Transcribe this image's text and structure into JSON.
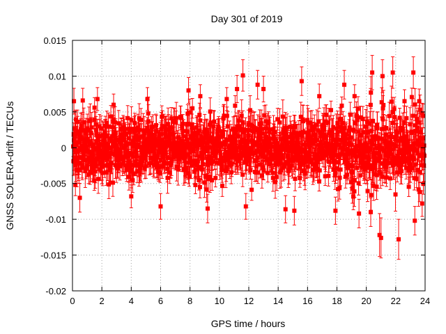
{
  "chart_data": {
    "type": "scatter",
    "title": "Day 301 of 2019",
    "xlabel": "GPS time / hours",
    "ylabel": "GNSS SOLERA-drift / TECUs",
    "xlim": [
      0,
      24
    ],
    "ylim": [
      -0.02,
      0.015
    ],
    "x_ticks": [
      "0",
      "2",
      "4",
      "6",
      "8",
      "10",
      "12",
      "14",
      "16",
      "18",
      "20",
      "22",
      "24"
    ],
    "y_ticks": [
      "0.015",
      "0.01",
      "0.005",
      "0",
      "-0.005",
      "-0.01",
      "-0.015",
      "-0.02"
    ],
    "x_tick_values": [
      0,
      2,
      4,
      6,
      8,
      10,
      12,
      14,
      16,
      18,
      20,
      22,
      24
    ],
    "y_tick_values": [
      0.015,
      0.01,
      0.005,
      0,
      -0.005,
      -0.01,
      -0.015,
      -0.02
    ],
    "grid": true,
    "legend": "none",
    "series_color": "#ff0000",
    "series": [
      {
        "marker": "square",
        "error_bars": true,
        "points": [
          {
            "x": 0.1,
            "y": 0.0065,
            "err": 0.0018
          },
          {
            "x": 0.2,
            "y": -0.0052,
            "err": 0.0015
          },
          {
            "x": 0.5,
            "y": -0.007,
            "err": 0.002
          },
          {
            "x": 0.7,
            "y": 0.0066,
            "err": 0.0017
          },
          {
            "x": 1.5,
            "y": 0.0056,
            "err": 0.0014
          },
          {
            "x": 1.7,
            "y": 0.0068,
            "err": 0.0016
          },
          {
            "x": 2.8,
            "y": 0.006,
            "err": 0.0015
          },
          {
            "x": 4.0,
            "y": -0.0068,
            "err": 0.0016
          },
          {
            "x": 5.1,
            "y": 0.0068,
            "err": 0.0016
          },
          {
            "x": 6.0,
            "y": -0.0082,
            "err": 0.0018
          },
          {
            "x": 7.9,
            "y": 0.008,
            "err": 0.0018
          },
          {
            "x": 8.7,
            "y": 0.0072,
            "err": 0.0016
          },
          {
            "x": 9.2,
            "y": -0.0085,
            "err": 0.002
          },
          {
            "x": 10.5,
            "y": 0.0068,
            "err": 0.0016
          },
          {
            "x": 11.2,
            "y": 0.0082,
            "err": 0.0019
          },
          {
            "x": 11.6,
            "y": 0.0101,
            "err": 0.0022
          },
          {
            "x": 11.8,
            "y": -0.0082,
            "err": 0.0018
          },
          {
            "x": 12.6,
            "y": 0.0088,
            "err": 0.002
          },
          {
            "x": 13.0,
            "y": 0.0082,
            "err": 0.0018
          },
          {
            "x": 14.5,
            "y": -0.0086,
            "err": 0.0019
          },
          {
            "x": 15.1,
            "y": -0.0088,
            "err": 0.002
          },
          {
            "x": 15.6,
            "y": 0.0093,
            "err": 0.002
          },
          {
            "x": 16.8,
            "y": 0.0072,
            "err": 0.0017
          },
          {
            "x": 17.9,
            "y": -0.0088,
            "err": 0.0019
          },
          {
            "x": 18.5,
            "y": 0.0088,
            "err": 0.002
          },
          {
            "x": 19.2,
            "y": 0.0072,
            "err": 0.0016
          },
          {
            "x": 19.5,
            "y": -0.0092,
            "err": 0.002
          },
          {
            "x": 20.3,
            "y": -0.009,
            "err": 0.002
          },
          {
            "x": 20.4,
            "y": 0.0105,
            "err": 0.0024
          },
          {
            "x": 20.9,
            "y": -0.0122,
            "err": 0.003
          },
          {
            "x": 21.0,
            "y": -0.0126,
            "err": 0.0028
          },
          {
            "x": 21.1,
            "y": 0.01,
            "err": 0.0023
          },
          {
            "x": 21.8,
            "y": 0.0105,
            "err": 0.0022
          },
          {
            "x": 22.2,
            "y": -0.0128,
            "err": 0.0028
          },
          {
            "x": 22.6,
            "y": 0.0065,
            "err": 0.0016
          },
          {
            "x": 23.2,
            "y": 0.0105,
            "err": 0.0022
          },
          {
            "x": 23.3,
            "y": -0.0102,
            "err": 0.002
          },
          {
            "x": 23.6,
            "y": 0.0065,
            "err": 0.0017
          },
          {
            "x": 23.8,
            "y": -0.0078,
            "err": 0.0018
          }
        ],
        "envelope_note": ""
      }
    ]
  }
}
